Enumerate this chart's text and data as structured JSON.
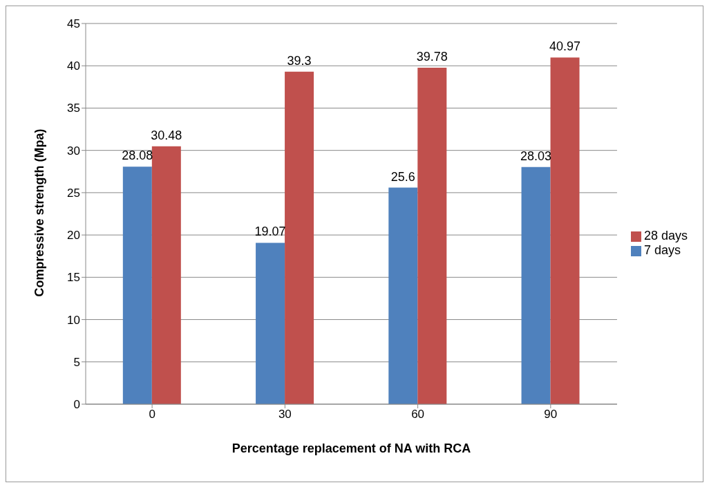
{
  "chart_data": {
    "type": "bar",
    "xlabel": "Percentage replacement of NA with RCA",
    "ylabel": "Compressive strength (Mpa)",
    "categories": [
      "0",
      "30",
      "60",
      "90"
    ],
    "series": [
      {
        "name": "7 days",
        "color": "#4f81bd",
        "values": [
          28.08,
          19.07,
          25.6,
          28.03
        ]
      },
      {
        "name": "28 days",
        "color": "#c0504d",
        "values": [
          30.48,
          39.3,
          39.78,
          40.97
        ]
      }
    ],
    "ylim": [
      0,
      45
    ],
    "yticks": [
      0,
      5,
      10,
      15,
      20,
      25,
      30,
      35,
      40,
      45
    ],
    "grid": "y",
    "legend": "right",
    "data_labels": true
  }
}
